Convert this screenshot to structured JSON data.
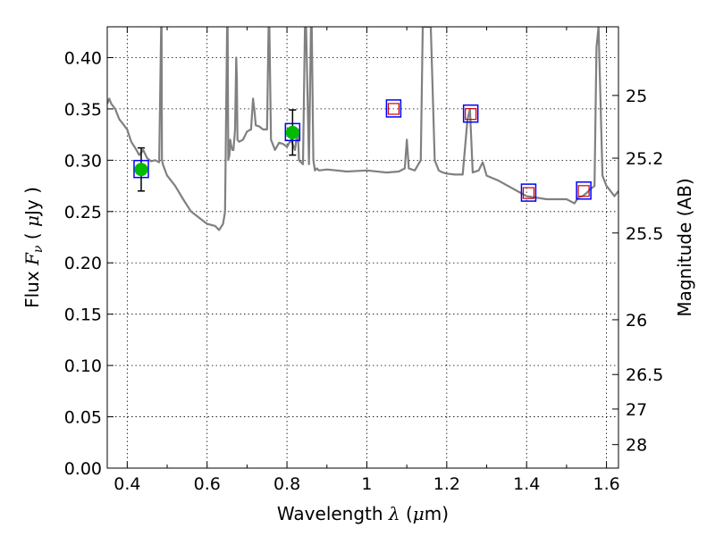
{
  "chart_data": {
    "type": "line",
    "title": "",
    "xlabel": {
      "pre": "Wavelength  ",
      "symbol": "λ",
      "post": " (",
      "unit_symbol": "μ",
      "unit_post": "m)"
    },
    "ylabel": {
      "pre": "Flux  ",
      "symbol": "F",
      "sub": "ν",
      "post": "  ( ",
      "unit_symbol": "μ",
      "unit_post": "Jy )"
    },
    "y2label": "Magnitude (AB)",
    "xlim": [
      0.35,
      1.63
    ],
    "ylim": [
      0.0,
      0.43
    ],
    "grid": true,
    "x_ticks": [
      {
        "value": 0.4,
        "label": "0.4"
      },
      {
        "value": 0.6,
        "label": "0.6"
      },
      {
        "value": 0.8,
        "label": "0.8"
      },
      {
        "value": 1.0,
        "label": "1"
      },
      {
        "value": 1.2,
        "label": "1.2"
      },
      {
        "value": 1.4,
        "label": "1.4"
      },
      {
        "value": 1.6,
        "label": "1.6"
      }
    ],
    "y_ticks": [
      {
        "value": 0.0,
        "label": "0.00"
      },
      {
        "value": 0.05,
        "label": "0.05"
      },
      {
        "value": 0.1,
        "label": "0.10"
      },
      {
        "value": 0.15,
        "label": "0.15"
      },
      {
        "value": 0.2,
        "label": "0.20"
      },
      {
        "value": 0.25,
        "label": "0.25"
      },
      {
        "value": 0.3,
        "label": "0.30"
      },
      {
        "value": 0.35,
        "label": "0.35"
      },
      {
        "value": 0.4,
        "label": "0.40"
      }
    ],
    "y2_ticks": [
      {
        "value": 25,
        "label": "25"
      },
      {
        "value": 25.2,
        "label": "25.2"
      },
      {
        "value": 25.5,
        "label": "25.5"
      },
      {
        "value": 26,
        "label": "26"
      },
      {
        "value": 26.5,
        "label": "26.5"
      },
      {
        "value": 27,
        "label": "27"
      },
      {
        "value": 28,
        "label": "28"
      }
    ],
    "series": [
      {
        "kind": "model_spectrum",
        "color": "#808080",
        "x": [
          0.35,
          0.355,
          0.36,
          0.37,
          0.38,
          0.39,
          0.4,
          0.41,
          0.42,
          0.43,
          0.44,
          0.45,
          0.46,
          0.47,
          0.48,
          0.485,
          0.486,
          0.487,
          0.49,
          0.5,
          0.52,
          0.54,
          0.56,
          0.58,
          0.6,
          0.62,
          0.63,
          0.64,
          0.645,
          0.65,
          0.6515,
          0.653,
          0.656,
          0.658,
          0.66,
          0.663,
          0.666,
          0.67,
          0.673,
          0.6745,
          0.676,
          0.68,
          0.69,
          0.7,
          0.71,
          0.715,
          0.718,
          0.722,
          0.73,
          0.74,
          0.75,
          0.754,
          0.756,
          0.76,
          0.77,
          0.78,
          0.79,
          0.8,
          0.81,
          0.82,
          0.827,
          0.83,
          0.84,
          0.845,
          0.848,
          0.855,
          0.86,
          0.862,
          0.866,
          0.87,
          0.875,
          0.88,
          0.9,
          0.95,
          1.0,
          1.05,
          1.08,
          1.095,
          1.1,
          1.105,
          1.12,
          1.135,
          1.14,
          1.15,
          1.16,
          1.17,
          1.18,
          1.19,
          1.2,
          1.22,
          1.24,
          1.252,
          1.258,
          1.265,
          1.28,
          1.29,
          1.3,
          1.33,
          1.4,
          1.45,
          1.5,
          1.52,
          1.53,
          1.54,
          1.55,
          1.56,
          1.57,
          1.575,
          1.58,
          1.59,
          1.6,
          1.61,
          1.62,
          1.63
        ],
        "y": [
          0.355,
          0.36,
          0.355,
          0.35,
          0.34,
          0.335,
          0.33,
          0.318,
          0.312,
          0.305,
          0.31,
          0.302,
          0.299,
          0.3,
          0.298,
          0.43,
          0.43,
          0.3,
          0.295,
          0.285,
          0.275,
          0.262,
          0.25,
          0.244,
          0.238,
          0.236,
          0.232,
          0.238,
          0.25,
          0.43,
          0.43,
          0.3,
          0.305,
          0.32,
          0.315,
          0.31,
          0.31,
          0.33,
          0.4,
          0.38,
          0.32,
          0.318,
          0.32,
          0.328,
          0.33,
          0.36,
          0.35,
          0.334,
          0.333,
          0.33,
          0.33,
          0.43,
          0.43,
          0.32,
          0.31,
          0.317,
          0.316,
          0.313,
          0.32,
          0.31,
          0.33,
          0.3,
          0.296,
          0.43,
          0.43,
          0.296,
          0.43,
          0.43,
          0.3,
          0.29,
          0.292,
          0.29,
          0.291,
          0.289,
          0.29,
          0.288,
          0.289,
          0.292,
          0.32,
          0.292,
          0.29,
          0.3,
          0.43,
          0.43,
          0.43,
          0.3,
          0.29,
          0.288,
          0.287,
          0.286,
          0.286,
          0.34,
          0.35,
          0.288,
          0.29,
          0.298,
          0.285,
          0.28,
          0.265,
          0.262,
          0.262,
          0.258,
          0.264,
          0.265,
          0.268,
          0.272,
          0.275,
          0.41,
          0.43,
          0.285,
          0.275,
          0.27,
          0.265,
          0.27
        ]
      },
      {
        "kind": "observed",
        "marker": "circle",
        "color": "#00bb00",
        "errorbar_color": "#000000",
        "box_color": "#0000ff",
        "points": [
          {
            "x": 0.435,
            "y": 0.291,
            "err": 0.021
          },
          {
            "x": 0.814,
            "y": 0.327,
            "err": 0.022
          }
        ]
      },
      {
        "kind": "model_band_flux",
        "marker": "square",
        "color": "#cc0000",
        "box_color": "#0000ff",
        "points": [
          {
            "x": 1.067,
            "y": 0.35
          },
          {
            "x": 1.26,
            "y": 0.345
          },
          {
            "x": 1.405,
            "y": 0.268
          },
          {
            "x": 1.543,
            "y": 0.27
          }
        ]
      }
    ]
  }
}
